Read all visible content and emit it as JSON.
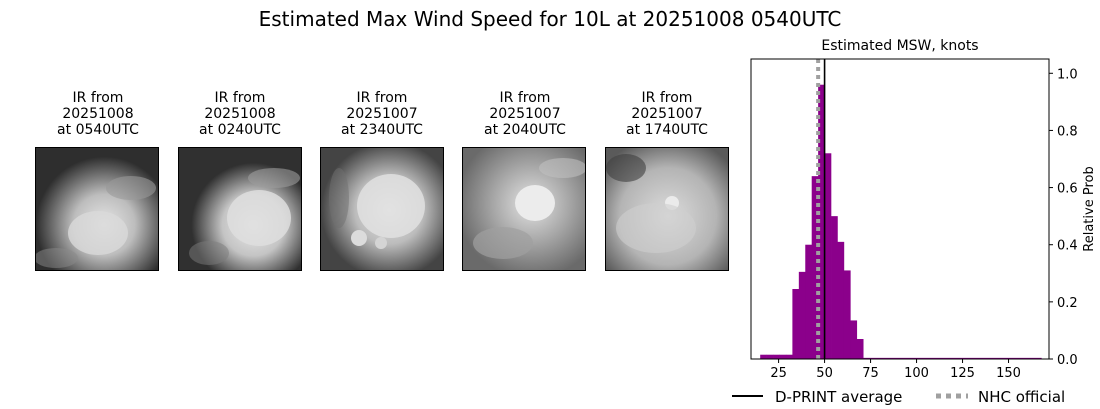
{
  "title": "Estimated Max Wind Speed for 10L at 20251008 0540UTC",
  "panels": [
    {
      "line1": "IR from",
      "line2": "20251008",
      "line3": "at 0540UTC"
    },
    {
      "line1": "IR from",
      "line2": "20251008",
      "line3": "at 0240UTC"
    },
    {
      "line1": "IR from",
      "line2": "20251007",
      "line3": "at 2340UTC"
    },
    {
      "line1": "IR from",
      "line2": "20251007",
      "line3": "at 2040UTC"
    },
    {
      "line1": "IR from",
      "line2": "20251007",
      "line3": "at 1740UTC"
    }
  ],
  "chart_data": {
    "type": "bar",
    "title": "Estimated MSW, knots",
    "xlabel": "",
    "ylabel": "Relative Prob",
    "xlim": [
      10,
      172
    ],
    "ylim": [
      0,
      1.05
    ],
    "xticks": [
      25,
      50,
      75,
      100,
      125,
      150
    ],
    "yticks": [
      0.0,
      0.2,
      0.4,
      0.6,
      0.8,
      1.0
    ],
    "bin_width": 3.5,
    "bins": [
      {
        "x0": 15,
        "value": 0.015
      },
      {
        "x0": 18.5,
        "value": 0.015
      },
      {
        "x0": 22,
        "value": 0.015
      },
      {
        "x0": 25.5,
        "value": 0.015
      },
      {
        "x0": 29,
        "value": 0.015
      },
      {
        "x0": 32.5,
        "value": 0.245
      },
      {
        "x0": 36,
        "value": 0.305
      },
      {
        "x0": 39.5,
        "value": 0.4
      },
      {
        "x0": 43,
        "value": 0.64
      },
      {
        "x0": 46.5,
        "value": 0.96
      },
      {
        "x0": 50,
        "value": 0.72
      },
      {
        "x0": 53.5,
        "value": 0.5
      },
      {
        "x0": 57,
        "value": 0.41
      },
      {
        "x0": 60.5,
        "value": 0.31
      },
      {
        "x0": 64,
        "value": 0.135
      },
      {
        "x0": 67.5,
        "value": 0.07
      }
    ],
    "tail": {
      "x0": 71,
      "x1": 168,
      "value": 0.004
    },
    "bar_color": "#8b008b",
    "dprint_average": 50,
    "nhc_official": 46.5,
    "legend": [
      {
        "label": "D-PRINT average",
        "color": "#000000",
        "style": "solid"
      },
      {
        "label": "NHC official",
        "color": "#a0a0a0",
        "style": "dotted"
      }
    ],
    "legend_position": "bottom"
  }
}
